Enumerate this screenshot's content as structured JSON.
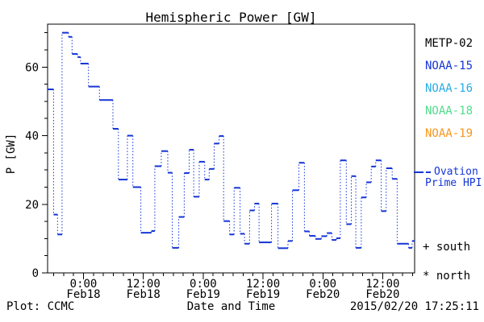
{
  "title": "Hemispheric Power [GW]",
  "y_axis": {
    "label": "P [GW]"
  },
  "x_axis": {
    "label": "Date and Time"
  },
  "footer": {
    "left": "Plot: CCMC",
    "right": "2015/02/20 17:25:11"
  },
  "legend": {
    "satellites": [
      {
        "label": "METP-02",
        "color": "#000000"
      },
      {
        "label": "NOAA-15",
        "color": "#1535d6"
      },
      {
        "label": "NOAA-16",
        "color": "#29abe8"
      },
      {
        "label": "NOAA-18",
        "color": "#50dc8c"
      },
      {
        "label": "NOAA-19",
        "color": "#f99618"
      }
    ],
    "ovation": {
      "line1": "Ovation",
      "line2": "Prime HPI",
      "label": "Ovation Prime HPI",
      "color": "#1535d6"
    },
    "south": "+ south",
    "north": "* north"
  },
  "chart_data": {
    "type": "line",
    "subtype": "steps-with-dotted-connectors",
    "title": "Hemispheric Power [GW]",
    "xlabel": "Date and Time",
    "ylabel": "P [GW]",
    "x_unit": "hours relative to 2015-02-18 00:00 UT",
    "xlim": [
      -7.2,
      66.4
    ],
    "ylim": [
      0,
      72.5
    ],
    "y_major_ticks": [
      0,
      20,
      40,
      60
    ],
    "y_minor_step": 5,
    "x_minor_step": 2,
    "x_major_ticks": [
      {
        "t": 0,
        "time": "0:00",
        "date": "Feb18"
      },
      {
        "t": 12,
        "time": "12:00",
        "date": "Feb18"
      },
      {
        "t": 24,
        "time": "0:00",
        "date": "Feb19"
      },
      {
        "t": 36,
        "time": "12:00",
        "date": "Feb19"
      },
      {
        "t": 48,
        "time": "0:00",
        "date": "Feb20"
      },
      {
        "t": 60,
        "time": "12:00",
        "date": "Feb20"
      }
    ],
    "series": [
      {
        "name": "Ovation Prime HPI",
        "color": "#1535d6",
        "steps": [
          [
            -7.2,
            -6.0,
            53.5
          ],
          [
            -6.0,
            -5.2,
            17.0
          ],
          [
            -5.2,
            -4.3,
            11.2
          ],
          [
            -4.3,
            -3.0,
            70.0
          ],
          [
            -3.0,
            -2.3,
            68.8
          ],
          [
            -2.3,
            -1.2,
            63.8
          ],
          [
            -1.2,
            -0.6,
            62.9
          ],
          [
            -0.6,
            1.0,
            61.0
          ],
          [
            1.0,
            3.2,
            54.3
          ],
          [
            3.2,
            5.9,
            50.4
          ],
          [
            5.9,
            7.0,
            42.0
          ],
          [
            7.0,
            8.8,
            27.2
          ],
          [
            8.8,
            9.9,
            40.0
          ],
          [
            9.9,
            11.5,
            25.0
          ],
          [
            11.5,
            13.6,
            11.7
          ],
          [
            13.6,
            14.3,
            12.2
          ],
          [
            14.3,
            15.6,
            31.1
          ],
          [
            15.6,
            16.9,
            35.5
          ],
          [
            16.9,
            17.8,
            29.2
          ],
          [
            17.8,
            19.1,
            7.3
          ],
          [
            19.1,
            20.2,
            16.3
          ],
          [
            20.2,
            21.2,
            29.1
          ],
          [
            21.2,
            22.1,
            35.9
          ],
          [
            22.1,
            23.2,
            22.2
          ],
          [
            23.2,
            24.3,
            32.4
          ],
          [
            24.3,
            25.2,
            27.2
          ],
          [
            25.2,
            26.2,
            30.3
          ],
          [
            26.2,
            27.2,
            37.7
          ],
          [
            27.2,
            28.1,
            39.9
          ],
          [
            28.1,
            29.3,
            15.1
          ],
          [
            29.3,
            30.2,
            11.2
          ],
          [
            30.2,
            31.4,
            24.8
          ],
          [
            31.4,
            32.3,
            11.4
          ],
          [
            32.3,
            33.3,
            8.5
          ],
          [
            33.3,
            34.3,
            18.2
          ],
          [
            34.3,
            35.2,
            20.2
          ],
          [
            35.2,
            37.7,
            8.9
          ],
          [
            37.7,
            39.0,
            20.2
          ],
          [
            39.0,
            41.0,
            7.2
          ],
          [
            41.0,
            41.9,
            9.3
          ],
          [
            41.9,
            43.2,
            24.1
          ],
          [
            43.2,
            44.3,
            32.1
          ],
          [
            44.3,
            45.3,
            12.1
          ],
          [
            45.3,
            46.5,
            10.8
          ],
          [
            46.5,
            47.7,
            9.9
          ],
          [
            47.7,
            48.8,
            10.7
          ],
          [
            48.8,
            49.8,
            11.6
          ],
          [
            49.8,
            50.7,
            9.6
          ],
          [
            50.7,
            51.5,
            10.1
          ],
          [
            51.5,
            52.7,
            32.8
          ],
          [
            52.7,
            53.7,
            14.2
          ],
          [
            53.7,
            54.6,
            28.2
          ],
          [
            54.6,
            55.7,
            7.3
          ],
          [
            55.7,
            56.7,
            22.0
          ],
          [
            56.7,
            57.7,
            26.4
          ],
          [
            57.7,
            58.6,
            31.0
          ],
          [
            58.6,
            59.7,
            32.8
          ],
          [
            59.7,
            60.7,
            18.0
          ],
          [
            60.7,
            61.9,
            30.5
          ],
          [
            61.9,
            62.9,
            27.4
          ],
          [
            62.9,
            65.2,
            8.5
          ],
          [
            65.2,
            65.9,
            7.3
          ],
          [
            65.9,
            66.4,
            9.3
          ]
        ]
      }
    ],
    "legend_entries": [
      "METP-02",
      "NOAA-15",
      "NOAA-16",
      "NOAA-18",
      "NOAA-19",
      "Ovation Prime HPI",
      "+ south",
      "* north"
    ],
    "grid": false,
    "legend_position": "right-outside"
  }
}
